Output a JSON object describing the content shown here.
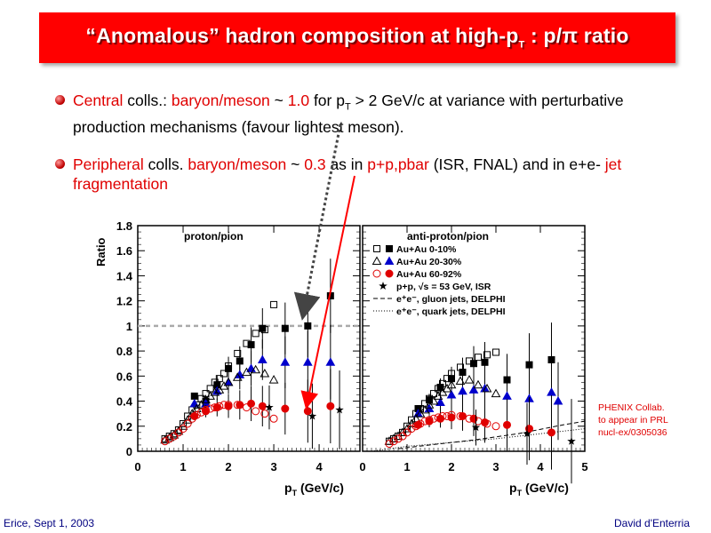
{
  "slide": {
    "title": "“Anomalous” hadron composition at high-p",
    "title_sub": "T",
    "title_end": " : p/π ratio",
    "bullet1": {
      "central": "Central",
      "colls": " colls.: ",
      "bm": "baryon/meson",
      "tilde": " ~ ",
      "val": "1.0",
      "for": " for p",
      "T": "T",
      "rest": " > 2 GeV/c at variance with perturbative production mechanisms (favour lightest meson)."
    },
    "bullet2": {
      "peripheral": "Peripheral",
      "colls": " colls. ",
      "bm": "baryon/meson",
      "tilde": " ~ ",
      "val": "0.3",
      "as_in": "  as in ",
      "ppbar": "p+p,pbar",
      "isr": " (ISR, FNAL) and in e+e- ",
      "jet": "jet fragmentation"
    },
    "credit": [
      "PHENIX Collab.",
      "to appear in PRL",
      "nucl-ex/0305036"
    ],
    "footer_left": "Erice, Sept 1, 2003",
    "footer_right": "David d'Enterria",
    "colors": {
      "title_bg": "#ff0000",
      "accent": "#e00000",
      "blue": "#0000cc",
      "footer": "#000080"
    }
  },
  "chart_data": [
    {
      "type": "scatter",
      "title": "proton/pion",
      "xlabel": "p_T (GeV/c)",
      "ylabel": "Ratio",
      "xlim": [
        0,
        4.9
      ],
      "ylim": [
        0,
        1.8
      ],
      "xticks": [
        "0",
        "1",
        "2",
        "3",
        "4"
      ],
      "yticks": [
        "0",
        "0.2",
        "0.4",
        "0.6",
        "0.8",
        "1",
        "1.2",
        "1.4",
        "1.6",
        "1.8"
      ],
      "reference_line": 1.0,
      "series": [
        {
          "name": "Au+Au 0-10%",
          "marker": "square",
          "color": "#000000",
          "filled": true,
          "points": [
            [
              1.25,
              0.44
            ],
            [
              1.5,
              0.4
            ],
            [
              1.75,
              0.53
            ],
            [
              2.0,
              0.66
            ],
            [
              2.25,
              0.72
            ],
            [
              2.5,
              0.85
            ],
            [
              2.75,
              0.98
            ],
            [
              3.25,
              0.98
            ],
            [
              3.75,
              1.0
            ],
            [
              4.25,
              1.24
            ]
          ]
        },
        {
          "name": "Au+Au 0-10%",
          "marker": "square",
          "color": "#000000",
          "filled": false,
          "points": [
            [
              0.6,
              0.1
            ],
            [
              0.7,
              0.12
            ],
            [
              0.8,
              0.14
            ],
            [
              0.9,
              0.17
            ],
            [
              1.0,
              0.22
            ],
            [
              1.1,
              0.28
            ],
            [
              1.2,
              0.33
            ],
            [
              1.3,
              0.37
            ],
            [
              1.4,
              0.42
            ],
            [
              1.5,
              0.46
            ],
            [
              1.6,
              0.5
            ],
            [
              1.7,
              0.55
            ],
            [
              1.8,
              0.58
            ],
            [
              1.9,
              0.62
            ],
            [
              2.0,
              0.68
            ],
            [
              2.2,
              0.78
            ],
            [
              2.4,
              0.86
            ],
            [
              2.6,
              0.94
            ],
            [
              2.8,
              0.97
            ],
            [
              3.0,
              1.17
            ]
          ]
        },
        {
          "name": "Au+Au 20-30%",
          "marker": "triangle",
          "color": "#0000cc",
          "filled": true,
          "points": [
            [
              1.25,
              0.38
            ],
            [
              1.5,
              0.38
            ],
            [
              1.75,
              0.48
            ],
            [
              2.0,
              0.55
            ],
            [
              2.25,
              0.61
            ],
            [
              2.5,
              0.66
            ],
            [
              2.75,
              0.73
            ],
            [
              3.25,
              0.71
            ],
            [
              3.75,
              0.71
            ],
            [
              4.25,
              0.71
            ]
          ]
        },
        {
          "name": "Au+Au 20-30%",
          "marker": "triangle",
          "color": "#000000",
          "filled": false,
          "points": [
            [
              0.6,
              0.09
            ],
            [
              0.7,
              0.11
            ],
            [
              0.8,
              0.13
            ],
            [
              0.9,
              0.16
            ],
            [
              1.0,
              0.2
            ],
            [
              1.1,
              0.25
            ],
            [
              1.2,
              0.3
            ],
            [
              1.3,
              0.34
            ],
            [
              1.4,
              0.37
            ],
            [
              1.5,
              0.41
            ],
            [
              1.6,
              0.44
            ],
            [
              1.7,
              0.47
            ],
            [
              1.8,
              0.49
            ],
            [
              1.9,
              0.52
            ],
            [
              2.0,
              0.55
            ],
            [
              2.2,
              0.59
            ],
            [
              2.4,
              0.63
            ],
            [
              2.6,
              0.65
            ],
            [
              2.8,
              0.62
            ],
            [
              3.0,
              0.57
            ]
          ]
        },
        {
          "name": "Au+Au 60-92%",
          "marker": "circle",
          "color": "#e00000",
          "filled": true,
          "points": [
            [
              1.25,
              0.28
            ],
            [
              1.5,
              0.32
            ],
            [
              1.75,
              0.35
            ],
            [
              2.0,
              0.36
            ],
            [
              2.25,
              0.37
            ],
            [
              2.5,
              0.38
            ],
            [
              2.75,
              0.36
            ],
            [
              3.25,
              0.34
            ],
            [
              3.75,
              0.32
            ],
            [
              4.25,
              0.36
            ]
          ]
        },
        {
          "name": "Au+Au 60-92%",
          "marker": "circle",
          "color": "#e00000",
          "filled": false,
          "points": [
            [
              0.6,
              0.08
            ],
            [
              0.7,
              0.1
            ],
            [
              0.8,
              0.12
            ],
            [
              0.9,
              0.15
            ],
            [
              1.0,
              0.18
            ],
            [
              1.1,
              0.22
            ],
            [
              1.2,
              0.26
            ],
            [
              1.3,
              0.29
            ],
            [
              1.4,
              0.31
            ],
            [
              1.5,
              0.33
            ],
            [
              1.6,
              0.34
            ],
            [
              1.7,
              0.35
            ],
            [
              1.8,
              0.36
            ],
            [
              1.9,
              0.37
            ],
            [
              2.0,
              0.37
            ],
            [
              2.2,
              0.37
            ],
            [
              2.4,
              0.35
            ],
            [
              2.6,
              0.32
            ],
            [
              2.8,
              0.3
            ],
            [
              3.0,
              0.26
            ]
          ]
        },
        {
          "name": "p+p, √s = 53 GeV, ISR",
          "marker": "star",
          "color": "#000000",
          "filled": true,
          "points": [
            [
              2.9,
              0.35
            ],
            [
              3.85,
              0.28
            ],
            [
              4.45,
              0.33
            ]
          ]
        }
      ]
    },
    {
      "type": "scatter",
      "title": "anti-proton/pion",
      "xlabel": "p_T (GeV/c)",
      "ylabel": "",
      "xlim": [
        0,
        5
      ],
      "ylim": [
        0,
        1.8
      ],
      "xticks": [
        "0",
        "1",
        "2",
        "3",
        "4",
        "5"
      ],
      "legend": [
        {
          "label": "Au+Au 0-10%",
          "markers": [
            "open-square",
            "filled-square"
          ]
        },
        {
          "label": "Au+Au 20-30%",
          "markers": [
            "open-triangle",
            "filled-triangle-blue"
          ]
        },
        {
          "label": "Au+Au 60-92%",
          "markers": [
            "open-circle-red",
            "filled-circle-red"
          ]
        },
        {
          "label": "p+p, √s = 53 GeV, ISR",
          "markers": [
            "star"
          ]
        },
        {
          "label": "e⁺e⁻, gluon jets, DELPHI",
          "markers": [
            "dash"
          ]
        },
        {
          "label": "e⁺e⁻, quark jets, DELPHI",
          "markers": [
            "dot"
          ]
        }
      ],
      "series": [
        {
          "name": "Au+Au 0-10%",
          "marker": "square",
          "color": "#000000",
          "filled": true,
          "points": [
            [
              1.25,
              0.34
            ],
            [
              1.5,
              0.41
            ],
            [
              1.75,
              0.51
            ],
            [
              2.0,
              0.58
            ],
            [
              2.25,
              0.63
            ],
            [
              2.5,
              0.7
            ],
            [
              2.75,
              0.71
            ],
            [
              3.25,
              0.57
            ],
            [
              3.75,
              0.69
            ],
            [
              4.25,
              0.73
            ]
          ]
        },
        {
          "name": "Au+Au 0-10%",
          "marker": "square",
          "color": "#000000",
          "filled": false,
          "points": [
            [
              0.6,
              0.08
            ],
            [
              0.7,
              0.1
            ],
            [
              0.8,
              0.12
            ],
            [
              0.9,
              0.15
            ],
            [
              1.0,
              0.2
            ],
            [
              1.1,
              0.25
            ],
            [
              1.2,
              0.3
            ],
            [
              1.3,
              0.34
            ],
            [
              1.4,
              0.38
            ],
            [
              1.5,
              0.42
            ],
            [
              1.6,
              0.46
            ],
            [
              1.7,
              0.5
            ],
            [
              1.8,
              0.54
            ],
            [
              1.9,
              0.58
            ],
            [
              2.0,
              0.62
            ],
            [
              2.2,
              0.67
            ],
            [
              2.4,
              0.72
            ],
            [
              2.6,
              0.75
            ],
            [
              2.8,
              0.77
            ],
            [
              3.0,
              0.79
            ]
          ]
        },
        {
          "name": "Au+Au 20-30%",
          "marker": "triangle",
          "color": "#0000cc",
          "filled": true,
          "points": [
            [
              1.25,
              0.3
            ],
            [
              1.5,
              0.34
            ],
            [
              1.75,
              0.39
            ],
            [
              2.0,
              0.45
            ],
            [
              2.25,
              0.48
            ],
            [
              2.5,
              0.49
            ],
            [
              2.75,
              0.5
            ],
            [
              3.25,
              0.44
            ],
            [
              3.75,
              0.42
            ],
            [
              4.25,
              0.47
            ],
            [
              4.4,
              0.4
            ]
          ]
        },
        {
          "name": "Au+Au 20-30%",
          "marker": "triangle",
          "color": "#000000",
          "filled": false,
          "points": [
            [
              0.6,
              0.08
            ],
            [
              0.7,
              0.1
            ],
            [
              0.8,
              0.12
            ],
            [
              0.9,
              0.15
            ],
            [
              1.0,
              0.18
            ],
            [
              1.1,
              0.22
            ],
            [
              1.2,
              0.26
            ],
            [
              1.3,
              0.3
            ],
            [
              1.4,
              0.33
            ],
            [
              1.5,
              0.37
            ],
            [
              1.6,
              0.4
            ],
            [
              1.7,
              0.44
            ],
            [
              1.8,
              0.47
            ],
            [
              1.9,
              0.5
            ],
            [
              2.0,
              0.53
            ],
            [
              2.2,
              0.56
            ],
            [
              2.4,
              0.57
            ],
            [
              2.6,
              0.53
            ],
            [
              2.8,
              0.5
            ],
            [
              3.0,
              0.46
            ]
          ]
        },
        {
          "name": "Au+Au 60-92%",
          "marker": "circle",
          "color": "#e00000",
          "filled": true,
          "points": [
            [
              1.25,
              0.21
            ],
            [
              1.5,
              0.24
            ],
            [
              1.75,
              0.26
            ],
            [
              2.0,
              0.27
            ],
            [
              2.25,
              0.28
            ],
            [
              2.5,
              0.26
            ],
            [
              2.75,
              0.23
            ],
            [
              3.25,
              0.21
            ],
            [
              3.75,
              0.18
            ],
            [
              4.25,
              0.15
            ]
          ]
        },
        {
          "name": "Au+Au 60-92%",
          "marker": "circle",
          "color": "#e00000",
          "filled": false,
          "points": [
            [
              0.6,
              0.06
            ],
            [
              0.7,
              0.08
            ],
            [
              0.8,
              0.1
            ],
            [
              0.9,
              0.12
            ],
            [
              1.0,
              0.15
            ],
            [
              1.1,
              0.18
            ],
            [
              1.2,
              0.2
            ],
            [
              1.3,
              0.22
            ],
            [
              1.4,
              0.24
            ],
            [
              1.5,
              0.25
            ],
            [
              1.6,
              0.26
            ],
            [
              1.7,
              0.27
            ],
            [
              1.8,
              0.28
            ],
            [
              1.9,
              0.28
            ],
            [
              2.0,
              0.29
            ],
            [
              2.2,
              0.28
            ],
            [
              2.4,
              0.26
            ],
            [
              2.6,
              0.24
            ],
            [
              2.8,
              0.22
            ],
            [
              3.0,
              0.2
            ]
          ]
        },
        {
          "name": "p+p, √s = 53 GeV, ISR",
          "marker": "star",
          "color": "#000000",
          "filled": true,
          "points": [
            [
              2.55,
              0.19
            ],
            [
              3.7,
              0.14
            ],
            [
              4.7,
              0.08
            ]
          ]
        }
      ],
      "lines": [
        {
          "name": "e⁺e⁻, gluon jets, DELPHI",
          "style": "dashed",
          "points": [
            [
              0.8,
              0.02
            ],
            [
              1.5,
              0.05
            ],
            [
              2.5,
              0.09
            ],
            [
              3.5,
              0.14
            ],
            [
              4.5,
              0.21
            ],
            [
              5.0,
              0.24
            ]
          ]
        },
        {
          "name": "e⁺e⁻, quark jets, DELPHI",
          "style": "dotted",
          "points": [
            [
              0.2,
              0.0
            ],
            [
              1.0,
              0.04
            ],
            [
              2.0,
              0.07
            ],
            [
              3.0,
              0.1
            ],
            [
              4.0,
              0.14
            ],
            [
              5.0,
              0.18
            ]
          ]
        }
      ]
    }
  ]
}
